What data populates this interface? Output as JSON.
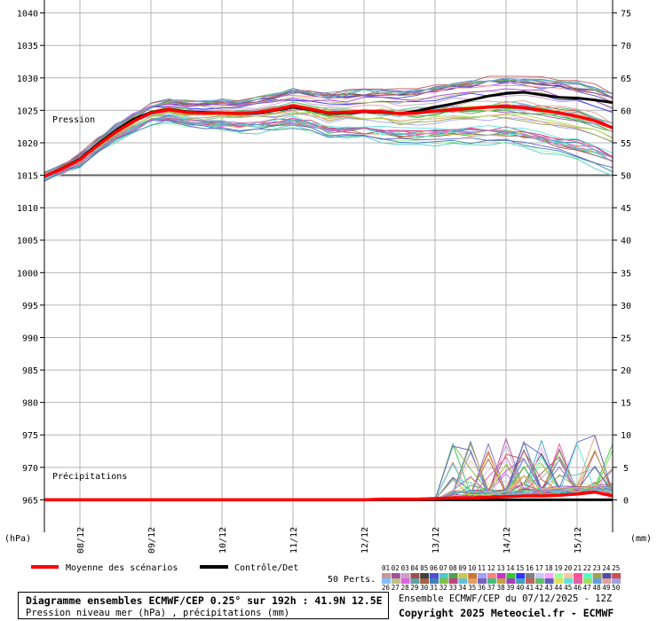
{
  "chart_data": {
    "type": "line",
    "left_axis": {
      "unit": "(hPa)",
      "ticks": [
        1040,
        1035,
        1030,
        1025,
        1020,
        1015,
        1010,
        1005,
        1000,
        995,
        990,
        985,
        980,
        975,
        970,
        965
      ],
      "range": [
        960,
        1042
      ]
    },
    "right_axis": {
      "unit": "(mm)",
      "ticks": [
        75,
        70,
        65,
        60,
        55,
        50,
        45,
        40,
        35,
        30,
        25,
        20,
        15,
        10,
        5,
        0
      ],
      "range": [
        -5,
        77
      ]
    },
    "x_ticks": [
      "08/12",
      "09/12",
      "10/12",
      "11/12",
      "12/12",
      "13/12",
      "14/12",
      "15/12"
    ],
    "panel_labels": {
      "pressure": "Pression",
      "precip": "Précipitations"
    },
    "x_steps": [
      0,
      6,
      12,
      18,
      24,
      30,
      36,
      42,
      48,
      54,
      60,
      66,
      72,
      78,
      84,
      90,
      96,
      102,
      108,
      114,
      120,
      126,
      132,
      138,
      144,
      150,
      156,
      162,
      168,
      174,
      180,
      186,
      192
    ],
    "series": [
      {
        "name": "Moyenne des scénarios",
        "color": "#ff0000",
        "pressure": [
          1014.8,
          1016.0,
          1017.4,
          1019.6,
          1021.6,
          1023.3,
          1024.6,
          1025.1,
          1024.7,
          1024.6,
          1024.6,
          1024.5,
          1024.7,
          1025.1,
          1025.7,
          1025.2,
          1024.6,
          1024.7,
          1024.9,
          1024.8,
          1024.5,
          1024.6,
          1024.9,
          1025.1,
          1025.3,
          1025.5,
          1025.6,
          1025.4,
          1025.0,
          1024.6,
          1024.1,
          1023.4,
          1022.3
        ],
        "precip": [
          0,
          0,
          0,
          0,
          0,
          0,
          0,
          0,
          0,
          0,
          0,
          0,
          0,
          0,
          0,
          0,
          0,
          0,
          0,
          0.1,
          0.1,
          0.1,
          0.2,
          0.3,
          0.3,
          0.4,
          0.5,
          0.6,
          0.6,
          0.7,
          0.9,
          1.2,
          0.6
        ]
      },
      {
        "name": "Contrôle/Det",
        "color": "#000000",
        "pressure": [
          1014.8,
          1016.1,
          1017.5,
          1019.8,
          1021.8,
          1023.6,
          1024.7,
          1025.2,
          1024.8,
          1024.7,
          1024.6,
          1024.5,
          1024.6,
          1025.0,
          1025.5,
          1025.1,
          1024.5,
          1024.6,
          1024.8,
          1024.7,
          1024.5,
          1024.9,
          1025.5,
          1026.0,
          1026.6,
          1027.2,
          1027.6,
          1027.8,
          1027.4,
          1027.0,
          1026.9,
          1026.6,
          1026.2
        ],
        "precip": [
          0,
          0,
          0,
          0,
          0,
          0,
          0,
          0,
          0,
          0,
          0,
          0,
          0,
          0,
          0,
          0,
          0,
          0,
          0,
          0,
          0,
          0,
          0,
          0,
          0,
          0,
          0,
          0,
          0,
          0,
          0,
          0,
          0
        ]
      }
    ]
  },
  "legend": {
    "mean_label": "Moyenne des scénarios",
    "control_label": "Contrôle/Det",
    "perts_label": "50 Perts."
  },
  "perturbations": {
    "colors": [
      "#c89696",
      "#a050a0",
      "#c8a0c8",
      "#a05050",
      "#404040",
      "#5050d0",
      "#50c8c8",
      "#50a050",
      "#c8c850",
      "#c87832",
      "#a0a0ff",
      "#ff8080",
      "#c832c8",
      "#32c832",
      "#3232ff",
      "#808080",
      "#c8c8ff",
      "#ffa0ff",
      "#a0ffa0",
      "#ffc8a0",
      "#ff50a0",
      "#50ffc8",
      "#a0a050",
      "#5050a0",
      "#c85050",
      "#80c0ff",
      "#c0c080",
      "#e060e0",
      "#60a0a0",
      "#a06040",
      "#4080c0",
      "#80c040",
      "#c04080",
      "#60c0e0",
      "#e0a060",
      "#8060c0",
      "#40c080",
      "#c0a040",
      "#a040c0",
      "#40a0c0",
      "#c06060",
      "#60c060",
      "#6060c0",
      "#e0e060",
      "#60e0e0",
      "#e060a0",
      "#a0e060",
      "#60a0e0",
      "#e0a0a0",
      "#a0a0e0"
    ]
  },
  "info": {
    "title": "Diagramme ensembles ECMWF/CEP 0.25° sur 192h : 41.9N 12.5E",
    "subtitle": "Pression niveau mer (hPa) , précipitations (mm)",
    "run": "Ensemble ECMWF/CEP du 07/12/2025 - 12Z",
    "copyright": "Copyright 2025 Meteociel.fr - ECMWF"
  }
}
